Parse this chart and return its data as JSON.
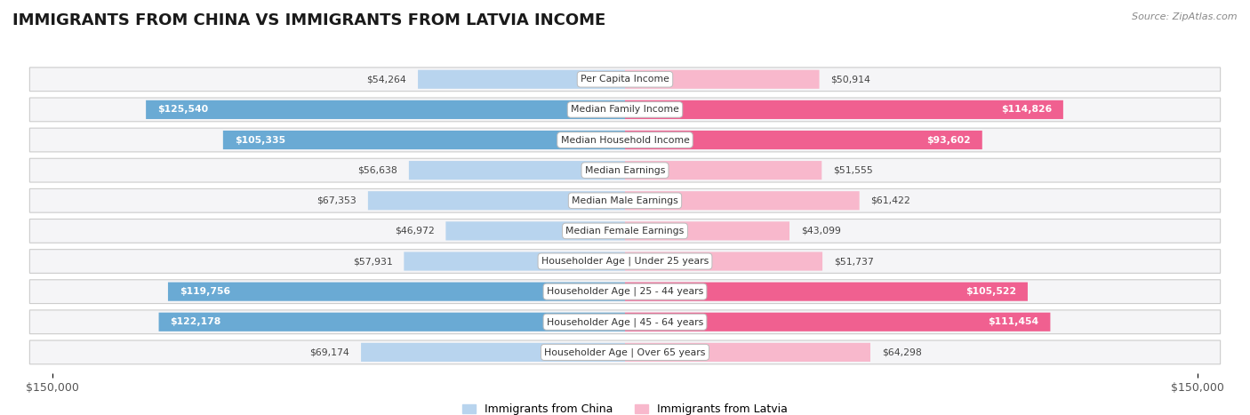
{
  "title": "IMMIGRANTS FROM CHINA VS IMMIGRANTS FROM LATVIA INCOME",
  "source": "Source: ZipAtlas.com",
  "categories": [
    "Per Capita Income",
    "Median Family Income",
    "Median Household Income",
    "Median Earnings",
    "Median Male Earnings",
    "Median Female Earnings",
    "Householder Age | Under 25 years",
    "Householder Age | 25 - 44 years",
    "Householder Age | 45 - 64 years",
    "Householder Age | Over 65 years"
  ],
  "china_values": [
    54264,
    125540,
    105335,
    56638,
    67353,
    46972,
    57931,
    119756,
    122178,
    69174
  ],
  "latvia_values": [
    50914,
    114826,
    93602,
    51555,
    61422,
    43099,
    51737,
    105522,
    111454,
    64298
  ],
  "china_color_light": "#b8d4ee",
  "china_color_dark": "#6aaad4",
  "latvia_color_light": "#f8b8cc",
  "latvia_color_dark": "#f06090",
  "china_label": "Immigrants from China",
  "latvia_label": "Immigrants from Latvia",
  "max_value": 150000,
  "background_color": "#ffffff",
  "row_bg_light": "#f0f0f0",
  "row_bg_dark": "#e8e8e8",
  "title_fontsize": 13,
  "tick_fontsize": 9,
  "large_threshold": 80000
}
